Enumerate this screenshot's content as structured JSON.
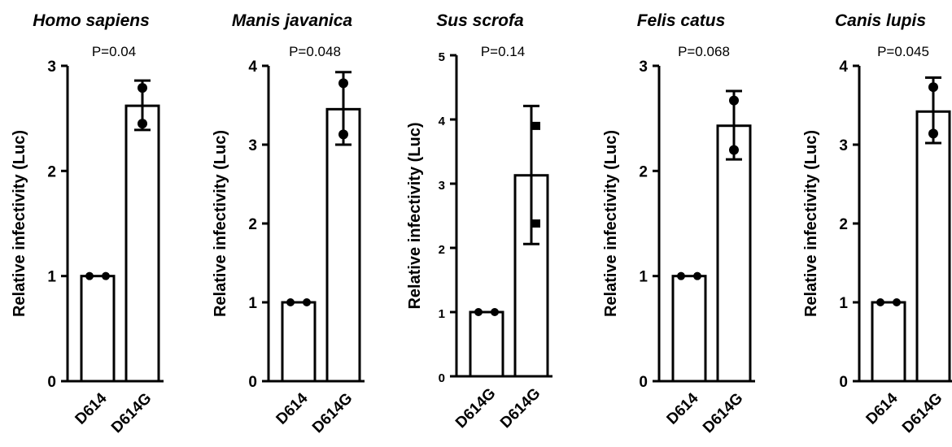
{
  "chart_data": [
    {
      "type": "bar",
      "title": "Homo sapiens",
      "annotation": "P=0.04",
      "ylabel": "Relative infectivity (Luc)",
      "categories": [
        "D614",
        "D614G"
      ],
      "values": [
        1.0,
        2.62
      ],
      "error_bars": [
        [
          1.0,
          1.0
        ],
        [
          2.39,
          2.86
        ]
      ],
      "points": [
        [
          1.0,
          1.0
        ],
        [
          2.45,
          2.79
        ]
      ],
      "ylim": [
        0,
        3
      ],
      "yticks": [
        "0",
        "1",
        "2",
        "3"
      ]
    },
    {
      "type": "bar",
      "title": "Manis javanica",
      "annotation": "P=0.048",
      "ylabel": "Relative infectivity (Luc)",
      "categories": [
        "D614",
        "D614G"
      ],
      "values": [
        1.0,
        3.45
      ],
      "error_bars": [
        [
          1.0,
          1.0
        ],
        [
          3.0,
          3.92
        ]
      ],
      "points": [
        [
          1.0,
          1.0
        ],
        [
          3.13,
          3.78
        ]
      ],
      "ylim": [
        0,
        4
      ],
      "yticks": [
        "0",
        "1",
        "2",
        "3",
        "4"
      ]
    },
    {
      "type": "bar",
      "title": "Sus scrofa",
      "annotation": "P=0.14",
      "ylabel": "Relative infectivity (Luc)",
      "categories": [
        "D614G",
        "D614G"
      ],
      "values": [
        1.0,
        3.13
      ],
      "error_bars": [
        [
          1.0,
          1.0
        ],
        [
          2.06,
          4.21
        ]
      ],
      "points": [
        [
          1.0,
          1.0
        ],
        [
          2.38,
          3.9
        ]
      ],
      "ylim": [
        0,
        5
      ],
      "yticks": [
        "0",
        "1",
        "2",
        "3",
        "4",
        "5"
      ]
    },
    {
      "type": "bar",
      "title": "Felis catus",
      "annotation": "P=0.068",
      "ylabel": "Relative infectivity (Luc)",
      "categories": [
        "D614",
        "D614G"
      ],
      "values": [
        1.0,
        2.43
      ],
      "error_bars": [
        [
          1.0,
          1.0
        ],
        [
          2.11,
          2.76
        ]
      ],
      "points": [
        [
          1.0,
          1.0
        ],
        [
          2.2,
          2.67
        ]
      ],
      "ylim": [
        0,
        3
      ],
      "yticks": [
        "0",
        "1",
        "2",
        "3"
      ]
    },
    {
      "type": "bar",
      "title": "Canis lupis",
      "annotation": "P=0.045",
      "ylabel": "Relative infectivity (Luc)",
      "categories": [
        "D614",
        "D614G"
      ],
      "values": [
        1.0,
        3.42
      ],
      "error_bars": [
        [
          1.0,
          1.0
        ],
        [
          3.02,
          3.85
        ]
      ],
      "points": [
        [
          1.0,
          1.0
        ],
        [
          3.14,
          3.73
        ]
      ],
      "ylim": [
        0,
        4
      ],
      "yticks": [
        "0",
        "1",
        "2",
        "3",
        "4"
      ]
    }
  ]
}
